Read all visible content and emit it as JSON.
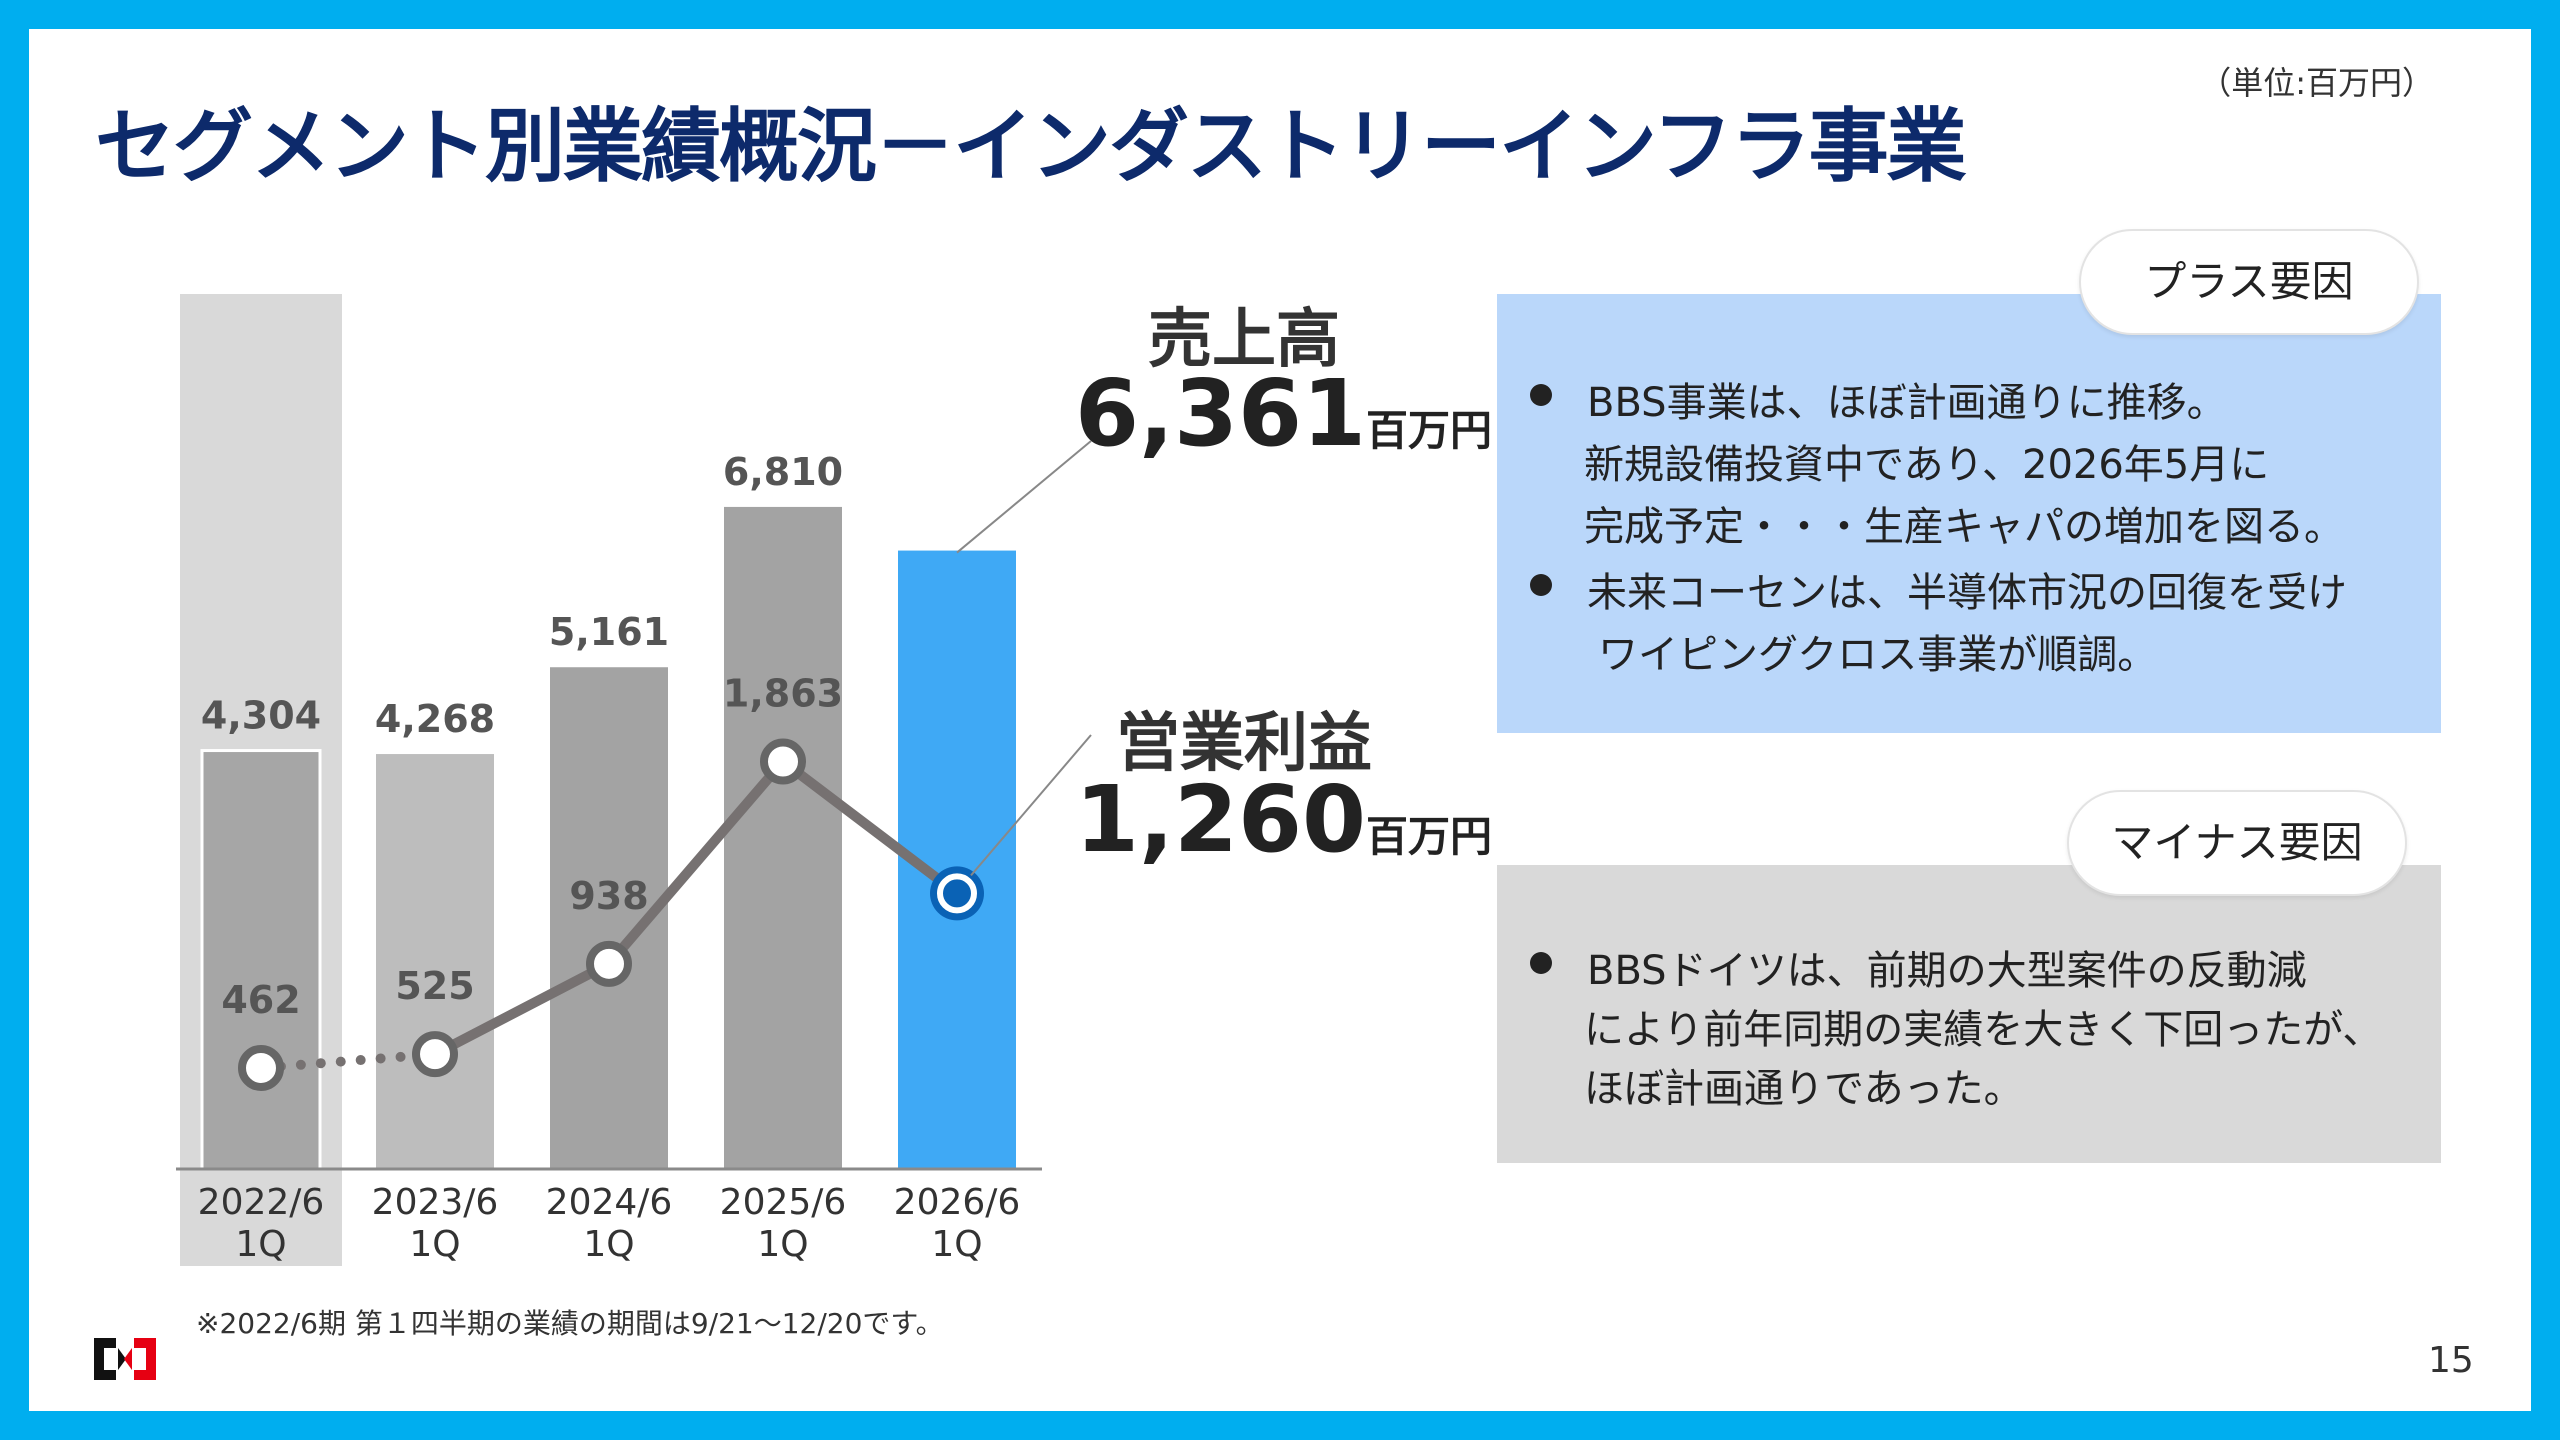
{
  "title": "セグメント別業績概況－インダストリーインフラ事業",
  "unit_note": "（単位:百万円）",
  "chart_data": {
    "type": "bar",
    "categories": [
      "2022/6\n1Q",
      "2023/6\n1Q",
      "2024/6\n1Q",
      "2025/6\n1Q",
      "2026/6\n1Q"
    ],
    "series": [
      {
        "name": "売上高",
        "type": "bar",
        "colors": [
          "#a6a6a6",
          "#bdbdbd",
          "#a3a3a3",
          "#a3a3a3",
          "#3fa9f5"
        ],
        "values": [
          4304,
          4268,
          5161,
          6810,
          6361
        ],
        "value_labels": [
          "4,304",
          "4,268",
          "5,161",
          "6,810",
          "6,361"
        ]
      },
      {
        "name": "営業利益",
        "type": "line",
        "axis": "y2",
        "color": "#767171",
        "values": [
          462,
          525,
          938,
          1863,
          1260
        ],
        "value_labels": [
          "462",
          "525",
          "938",
          "1,863",
          "1,260"
        ]
      }
    ],
    "ylim": [
      0,
      9000
    ],
    "y2lim": [
      0,
      4000
    ],
    "callout_unit": "百万円"
  },
  "plus": {
    "tag": "プラス要因",
    "bullets": [
      [
        "BBS事業は、ほぼ計画通りに推移。",
        "新規設備投資中であり、2026年5月に",
        "完成予定・・・生産キャパの増加を図る。"
      ],
      [
        "未来コーセンは、半導体市況の回復を受け",
        "ワイピングクロス事業が順調。"
      ]
    ]
  },
  "minus": {
    "tag": "マイナス要因",
    "bullets": [
      [
        "BBSドイツは、前期の大型案件の反動減",
        "により前年同期の実績を大きく下回ったが、",
        "ほぼ計画通りであった。"
      ]
    ]
  },
  "footnote": "※2022/6期 第１四半期の業績の期間は9/21～12/20です。",
  "page_number": "15"
}
